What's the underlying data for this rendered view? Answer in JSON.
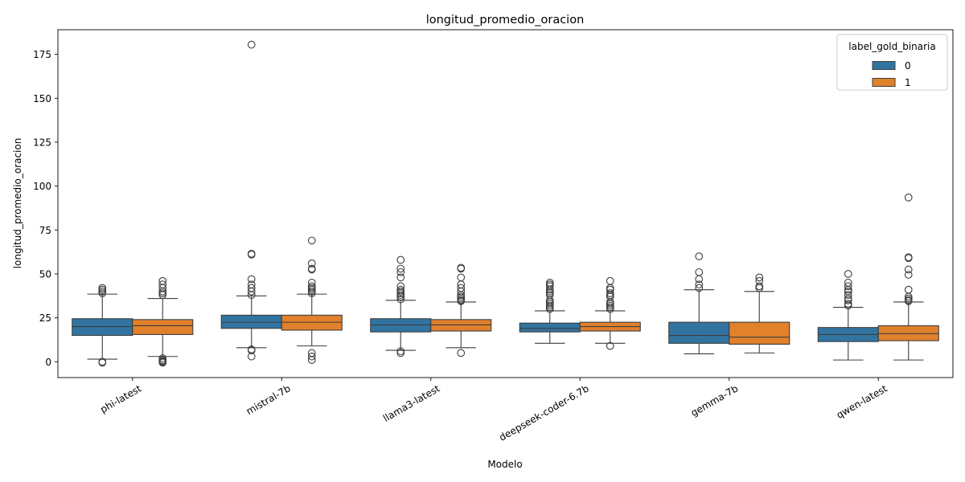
{
  "chart_data": {
    "type": "box",
    "title": "longitud_promedio_oracion",
    "xlabel": "Modelo",
    "ylabel": "longitud_promedio_oracion",
    "ylim": [
      -9,
      189
    ],
    "yticks": [
      0,
      25,
      50,
      75,
      100,
      125,
      150,
      175
    ],
    "categories": [
      "phi-latest",
      "mistral-7b",
      "llama3-latest",
      "deepseek-coder-6.7b",
      "gemma-7b",
      "qwen-latest"
    ],
    "legend": {
      "title": "label_gold_binaria",
      "position": "top-right",
      "entries": [
        {
          "label": "0",
          "color": "#3274a1"
        },
        {
          "label": "1",
          "color": "#e1812c"
        }
      ]
    },
    "series": [
      {
        "name": "0",
        "color": "#3274a1",
        "boxes": [
          {
            "whislo": 1.5,
            "q1": 15,
            "med": 20,
            "q3": 24.5,
            "whishi": 38.5,
            "fliers": [
              0,
              -0.5,
              39,
              40,
              41,
              42
            ]
          },
          {
            "whislo": 8,
            "q1": 19,
            "med": 22.5,
            "q3": 26.5,
            "whishi": 37.5,
            "fliers": [
              3,
              6.5,
              7,
              38,
              40,
              42,
              44,
              47,
              61,
              61.5,
              180.5
            ]
          },
          {
            "whislo": 6.5,
            "q1": 17,
            "med": 21,
            "q3": 24.5,
            "whishi": 35,
            "fliers": [
              5,
              6,
              35.5,
              37,
              38,
              39,
              40,
              41,
              43,
              48,
              51,
              53,
              58
            ]
          },
          {
            "whislo": 10.5,
            "q1": 17,
            "med": 19,
            "q3": 22,
            "whishi": 29,
            "fliers": [
              30,
              31,
              32,
              33,
              34,
              35,
              38,
              39,
              40,
              41,
              43,
              44,
              45
            ]
          },
          {
            "whislo": 4.5,
            "q1": 10.5,
            "med": 15,
            "q3": 22.5,
            "whishi": 41,
            "fliers": [
              42,
              44,
              47,
              51,
              60
            ]
          },
          {
            "whislo": 1,
            "q1": 11.5,
            "med": 15.5,
            "q3": 19.5,
            "whishi": 31,
            "fliers": [
              32,
              33,
              35,
              36,
              38,
              40,
              41,
              43,
              45,
              50
            ]
          }
        ]
      },
      {
        "name": "1",
        "color": "#e1812c",
        "boxes": [
          {
            "whislo": 3,
            "q1": 15.5,
            "med": 20.5,
            "q3": 24,
            "whishi": 36,
            "fliers": [
              -0.5,
              0,
              0.5,
              1,
              2,
              38,
              39,
              40,
              42,
              44,
              46
            ]
          },
          {
            "whislo": 9,
            "q1": 18,
            "med": 22.5,
            "q3": 26.5,
            "whishi": 38.5,
            "fliers": [
              1,
              3,
              5,
              39,
              40,
              41,
              42,
              43,
              45,
              52.5,
              53,
              56,
              69
            ]
          },
          {
            "whislo": 8,
            "q1": 17.5,
            "med": 21,
            "q3": 24,
            "whishi": 34,
            "fliers": [
              5,
              34.5,
              35,
              36,
              37,
              38,
              40,
              42,
              44,
              48,
              53,
              53.5
            ]
          },
          {
            "whislo": 10.5,
            "q1": 17.5,
            "med": 20,
            "q3": 22.5,
            "whishi": 29,
            "fliers": [
              9,
              30,
              31,
              32,
              33,
              34,
              37,
              38,
              39,
              41,
              42,
              46
            ]
          },
          {
            "whislo": 5,
            "q1": 10,
            "med": 14,
            "q3": 22.5,
            "whishi": 40,
            "fliers": [
              42,
              43,
              46,
              48
            ]
          },
          {
            "whislo": 1,
            "q1": 12,
            "med": 16,
            "q3": 20.5,
            "whishi": 34,
            "fliers": [
              34.5,
              35,
              36,
              37,
              41,
              49.5,
              52.5,
              59,
              59.5,
              93.5
            ]
          }
        ]
      }
    ]
  }
}
